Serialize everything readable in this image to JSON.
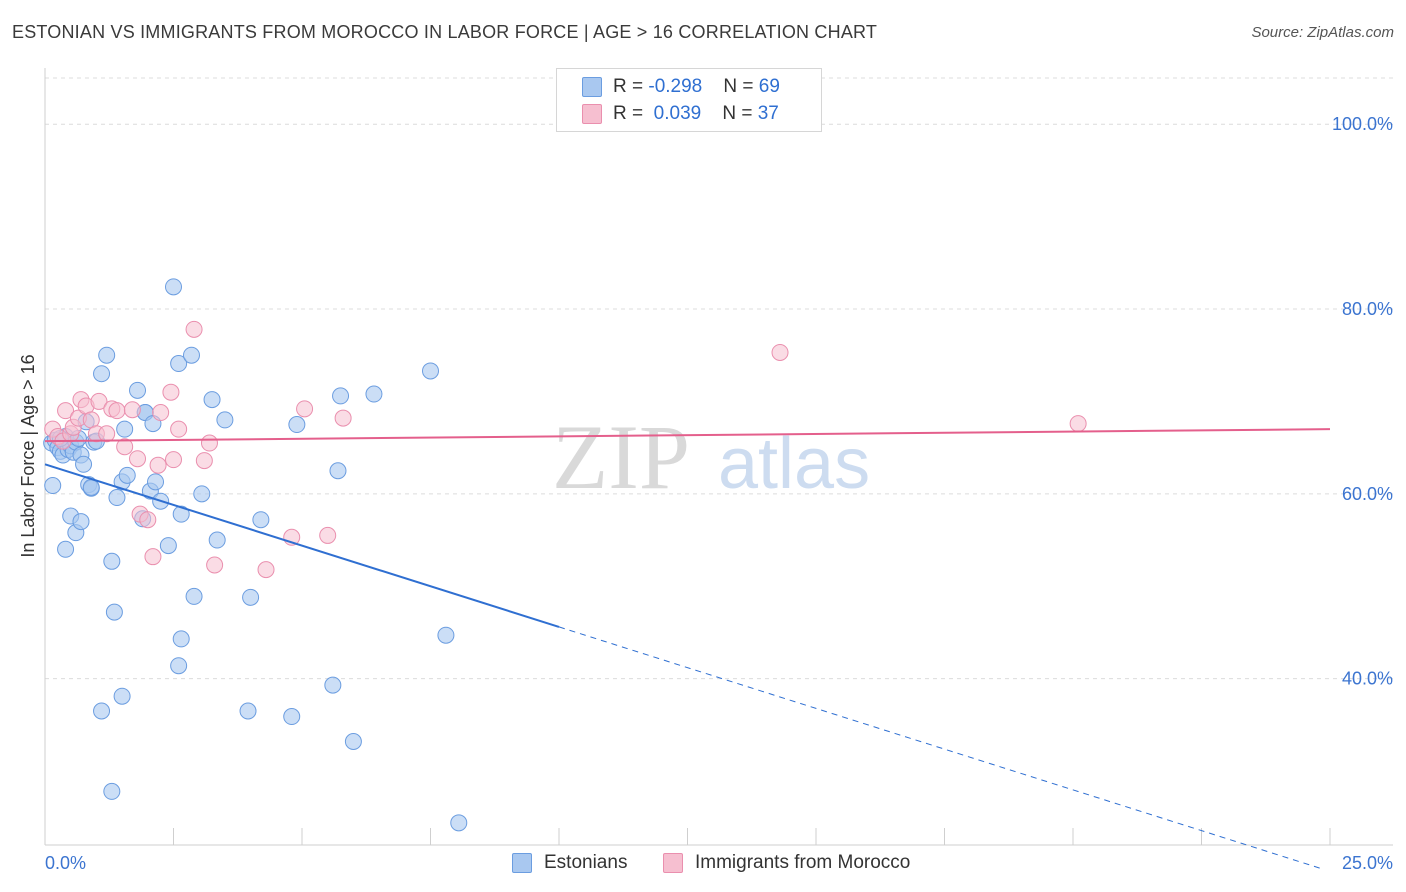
{
  "header": {
    "title": "ESTONIAN VS IMMIGRANTS FROM MOROCCO IN LABOR FORCE | AGE > 16 CORRELATION CHART",
    "source": "Source: ZipAtlas.com"
  },
  "legend": {
    "rows": [
      {
        "r_label": "R = ",
        "r_value": "-0.298",
        "n_label": "N = ",
        "n_value": "69"
      },
      {
        "r_label": "R = ",
        "r_value": " 0.039",
        "n_label": "N = ",
        "n_value": "37"
      }
    ]
  },
  "bottom_legend": {
    "series_a": "Estonians",
    "series_b": "Immigrants from Morocco"
  },
  "colors": {
    "blue_fill": "#a9c8f0",
    "blue_stroke": "#6b9de0",
    "blue_line": "#2f6fd1",
    "pink_fill": "#f6bfd0",
    "pink_stroke": "#ea8fae",
    "pink_line": "#e45f8c",
    "axis_label": "#3b74d0",
    "grid": "#dcdcdc"
  },
  "watermark": {
    "zip": "ZIP",
    "atlas": "atlas"
  },
  "chart_data": {
    "type": "scatter",
    "title": "ESTONIAN VS IMMIGRANTS FROM MOROCCO IN LABOR FORCE | AGE > 16 CORRELATION CHART",
    "xlabel": "",
    "ylabel": "In Labor Force | Age > 16",
    "xlim": [
      0,
      25
    ],
    "ylim": [
      22,
      105
    ],
    "x_tick_labels": [
      "0.0%",
      "25.0%"
    ],
    "y_ticks": [
      40,
      60,
      80,
      100
    ],
    "y_tick_labels": [
      "40.0%",
      "60.0%",
      "80.0%",
      "100.0%"
    ],
    "grid": true,
    "series": [
      {
        "name": "Estonians",
        "R": -0.298,
        "N": 69,
        "trend": {
          "x0": 0,
          "y0": 63.2,
          "x_solid_end": 10.0,
          "y_solid_end": 45.6,
          "x1": 24.8,
          "y1": 19.5
        },
        "points": [
          [
            0.13,
            65.5
          ],
          [
            0.2,
            65.8
          ],
          [
            0.25,
            65.0
          ],
          [
            0.3,
            64.6
          ],
          [
            0.35,
            64.2
          ],
          [
            0.4,
            66.2
          ],
          [
            0.45,
            64.8
          ],
          [
            0.5,
            65.2
          ],
          [
            0.55,
            64.5
          ],
          [
            0.6,
            65.6
          ],
          [
            0.65,
            66.0
          ],
          [
            0.7,
            64.2
          ],
          [
            0.75,
            63.2
          ],
          [
            0.8,
            67.8
          ],
          [
            0.85,
            61.0
          ],
          [
            0.9,
            60.6
          ],
          [
            0.95,
            65.6
          ],
          [
            1.0,
            65.7
          ],
          [
            1.1,
            73.0
          ],
          [
            1.2,
            75.0
          ],
          [
            1.3,
            52.7
          ],
          [
            1.4,
            59.6
          ],
          [
            1.5,
            61.3
          ],
          [
            1.6,
            62.0
          ],
          [
            1.8,
            71.2
          ],
          [
            1.95,
            68.8
          ],
          [
            2.05,
            60.3
          ],
          [
            2.15,
            61.3
          ],
          [
            2.25,
            59.2
          ],
          [
            2.4,
            54.4
          ],
          [
            2.5,
            82.4
          ],
          [
            2.6,
            74.1
          ],
          [
            2.85,
            75.0
          ],
          [
            3.05,
            60.0
          ],
          [
            3.25,
            70.2
          ],
          [
            3.5,
            68.0
          ],
          [
            4.0,
            48.8
          ],
          [
            4.2,
            57.2
          ],
          [
            4.9,
            67.5
          ],
          [
            5.7,
            62.5
          ],
          [
            5.75,
            70.6
          ],
          [
            6.4,
            70.8
          ],
          [
            7.5,
            73.3
          ],
          [
            0.15,
            60.9
          ],
          [
            0.4,
            54.0
          ],
          [
            0.5,
            57.6
          ],
          [
            0.6,
            55.8
          ],
          [
            0.7,
            57.0
          ],
          [
            0.9,
            60.7
          ],
          [
            1.1,
            36.5
          ],
          [
            1.35,
            47.2
          ],
          [
            1.5,
            38.1
          ],
          [
            1.3,
            27.8
          ],
          [
            1.9,
            57.3
          ],
          [
            1.95,
            68.8
          ],
          [
            2.6,
            41.4
          ],
          [
            2.65,
            44.3
          ],
          [
            2.65,
            57.8
          ],
          [
            2.9,
            48.9
          ],
          [
            3.35,
            55.0
          ],
          [
            3.95,
            36.5
          ],
          [
            4.8,
            35.9
          ],
          [
            5.6,
            39.3
          ],
          [
            6.0,
            33.2
          ],
          [
            7.8,
            44.7
          ],
          [
            8.05,
            24.4
          ],
          [
            1.55,
            67.0
          ],
          [
            2.1,
            67.6
          ],
          [
            0.3,
            66.0
          ]
        ]
      },
      {
        "name": "Immigrants from Morocco",
        "R": 0.039,
        "N": 37,
        "trend": {
          "x0": 0,
          "y0": 65.7,
          "x1": 25,
          "y1": 67.0
        },
        "points": [
          [
            0.15,
            67.0
          ],
          [
            0.25,
            66.2
          ],
          [
            0.35,
            65.7
          ],
          [
            0.4,
            69.0
          ],
          [
            0.5,
            66.5
          ],
          [
            0.55,
            67.2
          ],
          [
            0.65,
            68.2
          ],
          [
            0.7,
            70.2
          ],
          [
            0.8,
            69.5
          ],
          [
            0.9,
            68.0
          ],
          [
            1.0,
            66.5
          ],
          [
            1.05,
            70.0
          ],
          [
            1.2,
            66.5
          ],
          [
            1.3,
            69.2
          ],
          [
            1.4,
            69.0
          ],
          [
            1.55,
            65.1
          ],
          [
            1.7,
            69.1
          ],
          [
            1.8,
            63.8
          ],
          [
            1.85,
            57.8
          ],
          [
            2.0,
            57.2
          ],
          [
            2.1,
            53.2
          ],
          [
            2.2,
            63.1
          ],
          [
            2.25,
            68.8
          ],
          [
            2.45,
            71.0
          ],
          [
            2.5,
            63.7
          ],
          [
            2.6,
            67.0
          ],
          [
            2.9,
            77.8
          ],
          [
            3.1,
            63.6
          ],
          [
            3.2,
            65.5
          ],
          [
            3.3,
            52.3
          ],
          [
            4.3,
            51.8
          ],
          [
            4.8,
            55.3
          ],
          [
            5.05,
            69.2
          ],
          [
            5.5,
            55.5
          ],
          [
            5.8,
            68.2
          ],
          [
            14.3,
            75.3
          ],
          [
            20.1,
            67.6
          ]
        ]
      }
    ]
  }
}
